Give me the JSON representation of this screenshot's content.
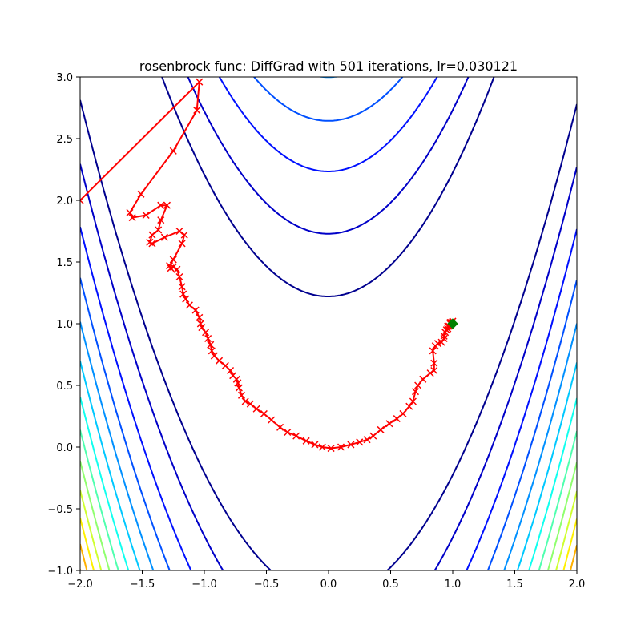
{
  "chart_data": {
    "type": "line",
    "title": "rosenbrock func: DiffGrad with 501 iterations, lr=0.030121",
    "xlabel": "",
    "ylabel": "",
    "xlim": [
      -2.0,
      2.0
    ],
    "ylim": [
      -1.0,
      3.0
    ],
    "x_ticks": [
      "−2.0",
      "−1.5",
      "−1.0",
      "−0.5",
      "0.0",
      "0.5",
      "1.0",
      "1.5",
      "2.0"
    ],
    "y_ticks": [
      "−1.0",
      "−0.5",
      "0.0",
      "0.5",
      "1.0",
      "1.5",
      "2.0",
      "2.5",
      "3.0"
    ],
    "x_tick_values": [
      -2.0,
      -1.5,
      -1.0,
      -0.5,
      0.0,
      0.5,
      1.0,
      1.5,
      2.0
    ],
    "y_tick_values": [
      -1.0,
      -0.5,
      0.0,
      0.5,
      1.0,
      1.5,
      2.0,
      2.5,
      3.0
    ],
    "grid": false,
    "background": {
      "kind": "contour",
      "function": "rosenbrock",
      "levels": [
        150,
        300,
        500,
        700,
        900,
        1100,
        1300,
        1500,
        1700,
        1900,
        2100,
        2300,
        2500,
        2700,
        2900,
        3100
      ],
      "colormap": [
        "#00008f",
        "#0000c8",
        "#0010ff",
        "#0050ff",
        "#0090ff",
        "#00c8ff",
        "#10ffef",
        "#50ffaf",
        "#90ff6f",
        "#cfff30",
        "#ffef00",
        "#ffb000",
        "#ff7000",
        "#ff3000",
        "#ef0000",
        "#b00000"
      ]
    },
    "series": [
      {
        "color": "#ff0000",
        "marker": "x",
        "x": [
          -2.0,
          -1.04,
          -1.06,
          -1.25,
          -1.51,
          -1.6,
          -1.58,
          -1.47,
          -1.35,
          -1.3,
          -1.35,
          -1.37,
          -1.42,
          -1.44,
          -1.42,
          -1.32,
          -1.2,
          -1.16,
          -1.18,
          -1.25,
          -1.28,
          -1.27,
          -1.25,
          -1.22,
          -1.2,
          -1.18,
          -1.17,
          -1.15,
          -1.12,
          -1.07,
          -1.04,
          -1.03,
          -1.02,
          -0.99,
          -0.97,
          -0.95,
          -0.94,
          -0.92,
          -0.88,
          -0.83,
          -0.79,
          -0.77,
          -0.74,
          -0.73,
          -0.72,
          -0.7,
          -0.67,
          -0.63,
          -0.58,
          -0.52,
          -0.46,
          -0.39,
          -0.33,
          -0.26,
          -0.18,
          -0.11,
          -0.05,
          0.02,
          0.1,
          0.18,
          0.25,
          0.31,
          0.36,
          0.42,
          0.49,
          0.55,
          0.6,
          0.65,
          0.68,
          0.7,
          0.72,
          0.76,
          0.82,
          0.85,
          0.85,
          0.84,
          0.86,
          0.88,
          0.91,
          0.93,
          0.93,
          0.94,
          0.95,
          0.96,
          0.96,
          0.97,
          0.98,
          0.98,
          0.99,
          1.0
        ],
        "y": [
          2.0,
          2.96,
          2.73,
          2.4,
          2.05,
          1.9,
          1.86,
          1.88,
          1.96,
          1.96,
          1.84,
          1.76,
          1.72,
          1.66,
          1.65,
          1.7,
          1.75,
          1.72,
          1.65,
          1.52,
          1.47,
          1.45,
          1.46,
          1.44,
          1.38,
          1.3,
          1.24,
          1.2,
          1.15,
          1.11,
          1.05,
          1.0,
          0.97,
          0.93,
          0.88,
          0.83,
          0.78,
          0.74,
          0.7,
          0.66,
          0.62,
          0.58,
          0.55,
          0.52,
          0.48,
          0.42,
          0.37,
          0.35,
          0.31,
          0.27,
          0.22,
          0.16,
          0.12,
          0.09,
          0.05,
          0.02,
          0.0,
          -0.01,
          0.0,
          0.02,
          0.04,
          0.06,
          0.09,
          0.14,
          0.19,
          0.23,
          0.27,
          0.33,
          0.37,
          0.45,
          0.5,
          0.55,
          0.6,
          0.62,
          0.68,
          0.78,
          0.82,
          0.84,
          0.85,
          0.88,
          0.9,
          0.93,
          0.95,
          0.96,
          0.98,
          0.98,
          1.0,
          1.01,
          1.01,
          1.02
        ]
      }
    ],
    "end_marker": {
      "x": 1.0,
      "y": 1.0,
      "color": "#008000",
      "shape": "diamond"
    }
  }
}
